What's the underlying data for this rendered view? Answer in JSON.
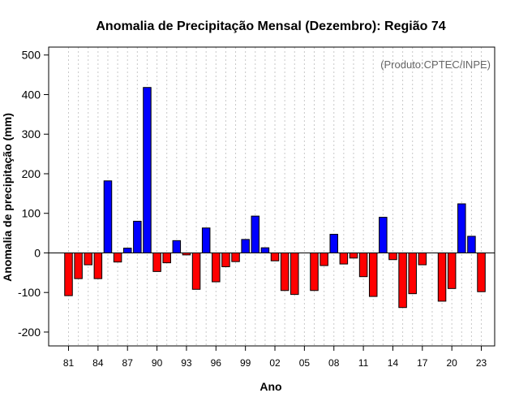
{
  "chart_data": {
    "type": "bar",
    "title": "Anomalia de Precipitação Mensal (Dezembro): Região 74",
    "xlabel": "Ano",
    "ylabel": "Anomalia de precipitação (mm)",
    "annotation": "(Produto:CPTEC/INPE)",
    "ylim": [
      -235,
      520
    ],
    "yticks": [
      -200,
      -100,
      0,
      100,
      200,
      300,
      400,
      500
    ],
    "xtick_labels": [
      "81",
      "84",
      "87",
      "90",
      "93",
      "96",
      "99",
      "02",
      "05",
      "08",
      "11",
      "14",
      "17",
      "20",
      "23"
    ],
    "categories": [
      "1981",
      "1982",
      "1983",
      "1984",
      "1985",
      "1986",
      "1987",
      "1988",
      "1989",
      "1990",
      "1991",
      "1992",
      "1993",
      "1994",
      "1995",
      "1996",
      "1997",
      "1998",
      "1999",
      "2000",
      "2001",
      "2002",
      "2003",
      "2004",
      "2005",
      "2006",
      "2007",
      "2008",
      "2009",
      "2010",
      "2011",
      "2012",
      "2013",
      "2014",
      "2015",
      "2016",
      "2017",
      "2018",
      "2019",
      "2020",
      "2021",
      "2022",
      "2023"
    ],
    "values": [
      -108,
      -65,
      -30,
      -65,
      182,
      -23,
      12,
      80,
      418,
      -47,
      -25,
      31,
      -5,
      -92,
      63,
      -73,
      -35,
      -22,
      34,
      93,
      13,
      -20,
      -95,
      -105,
      0,
      -95,
      -32,
      47,
      -28,
      -13,
      -60,
      -110,
      90,
      -17,
      -138,
      -103,
      -30,
      0,
      -122,
      -90,
      124,
      42,
      -98
    ],
    "colors": {
      "positive": "#0000ff",
      "negative": "#ff0000",
      "grid": "#c8c8c8",
      "frame": "#000000",
      "zero": "#000000"
    }
  }
}
